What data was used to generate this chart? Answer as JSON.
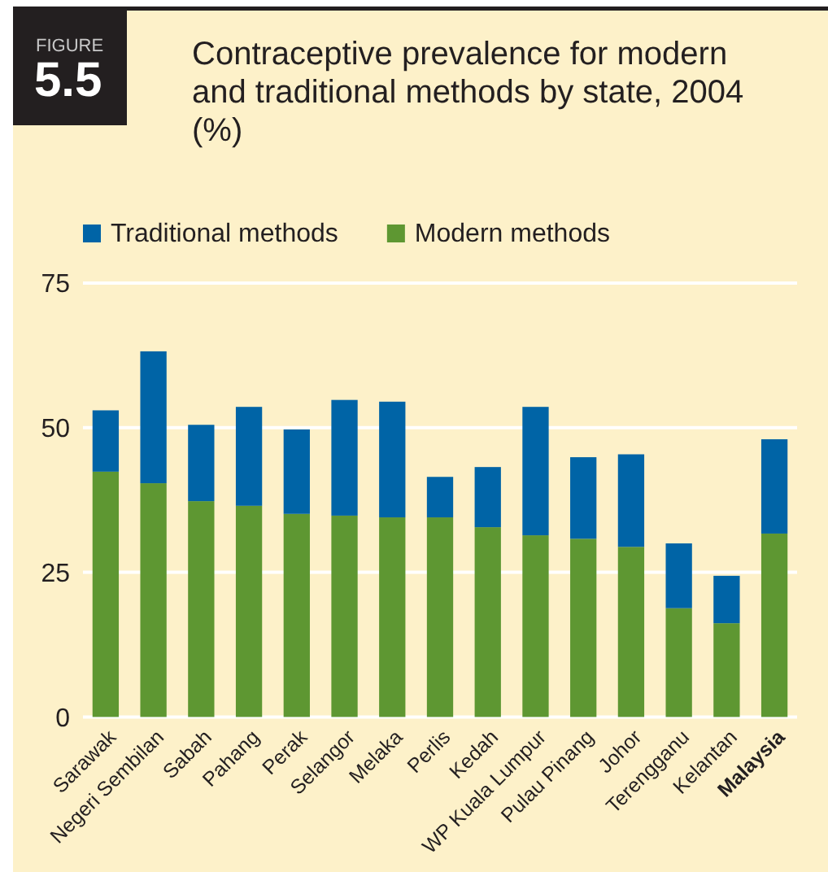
{
  "chart_data": {
    "type": "bar",
    "title": "Contraceptive prevalence for modern and traditional methods by state, 2004 (%)",
    "annotations": [
      "FIGURE",
      "5.5"
    ],
    "categories": [
      "Sarawak",
      "Negeri Sembilan",
      "Sabah",
      "Pahang",
      "Perak",
      "Selangor",
      "Melaka",
      "Perlis",
      "Kedah",
      "WP Kuala Lumpur",
      "Pulau Pinang",
      "Johor",
      "Terengganu",
      "Kelantan",
      "Malaysia"
    ],
    "series": [
      {
        "name": "Modern methods",
        "color": "#5e9732",
        "values": [
          42.4,
          40.4,
          37.3,
          36.5,
          35.1,
          34.8,
          34.5,
          34.5,
          32.8,
          31.4,
          30.8,
          29.4,
          18.8,
          16.2,
          31.7
        ]
      },
      {
        "name": "Traditional methods",
        "color": "#0064a6",
        "values": [
          10.6,
          22.8,
          13.2,
          17.1,
          14.6,
          20.0,
          20.0,
          7.0,
          10.4,
          22.2,
          14.1,
          16.0,
          11.2,
          8.2,
          16.3
        ]
      }
    ],
    "stacked": true,
    "ylim": [
      0,
      75
    ],
    "yticks": [
      0,
      25,
      50,
      75
    ],
    "grid": "y",
    "legend": "top"
  }
}
